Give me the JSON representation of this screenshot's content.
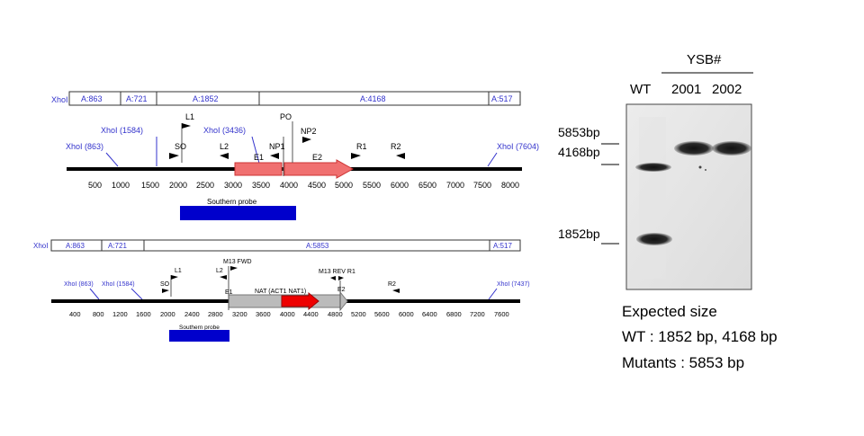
{
  "map1": {
    "fragments": [
      "A:863",
      "A:721",
      "A:1852",
      "A:4168",
      "A:517"
    ],
    "frag_label": "XhoI",
    "sites": [
      "XhoI (863)",
      "XhoI (1584)",
      "XhoI (3436)",
      "XhoI (7604)"
    ],
    "primers": [
      "L1",
      "SO",
      "L2",
      "E1",
      "NP1",
      "PO",
      "NP2",
      "E2",
      "R1",
      "R2"
    ],
    "ticks": [
      "500",
      "1000",
      "1500",
      "2000",
      "2500",
      "3000",
      "3500",
      "4000",
      "4500",
      "5000",
      "5500",
      "6000",
      "6500",
      "7000",
      "7500",
      "8000"
    ],
    "probe_label": "Southern probe"
  },
  "map2": {
    "fragments": [
      "A:863",
      "A:721",
      "A:5853",
      "A:517"
    ],
    "frag_label": "XhoI",
    "sites": [
      "XhoI (863)",
      "XhoI (1584)",
      "XhoI (7437)"
    ],
    "primers": [
      "L1",
      "SO",
      "M13 FWD",
      "L2",
      "E1",
      "NAT (ACT1 NAT1)",
      "M13 REV R1",
      "E2",
      "R2"
    ],
    "ticks": [
      "400",
      "800",
      "1200",
      "1600",
      "2000",
      "2400",
      "2800",
      "3200",
      "3600",
      "4000",
      "4400",
      "4800",
      "5200",
      "5600",
      "6000",
      "6400",
      "6800",
      "7200",
      "7600"
    ],
    "probe_label": "Southern probe"
  },
  "gel": {
    "group_label": "YSB#",
    "lanes": [
      "WT",
      "2001",
      "2002"
    ],
    "markers": [
      "5853bp",
      "4168bp",
      "1852bp"
    ]
  },
  "summary": {
    "title": "Expected size",
    "wt": "WT : 1852 bp, 4168 bp",
    "mutants": "Mutants : 5853 bp"
  },
  "colors": {
    "exon": "#f07070",
    "nat": "#ee0000",
    "gray_cassette": "#bbbbbb",
    "probe": "#0000cc",
    "site": "#3333cc"
  }
}
